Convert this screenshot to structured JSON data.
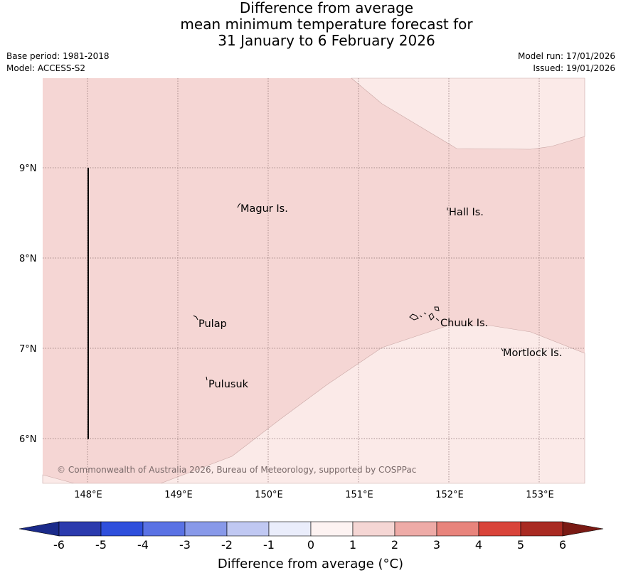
{
  "header": {
    "title_line1": "Difference from average",
    "title_line2": "mean minimum temperature forecast for",
    "title_line3": "31 January to 6 February 2026",
    "base_period": "Base period: 1981-2018",
    "model": "Model: ACCESS-S2",
    "model_run": "Model run: 17/01/2026",
    "issued": "Issued: 19/01/2026"
  },
  "map": {
    "lat_labels": [
      "9°N",
      "8°N",
      "7°N",
      "6°N"
    ],
    "lon_labels": [
      "148°E",
      "149°E",
      "150°E",
      "151°E",
      "152°E",
      "153°E"
    ],
    "places": [
      {
        "name": "Magur Is."
      },
      {
        "name": "Hall Is."
      },
      {
        "name": "Pulap"
      },
      {
        "name": "Chuuk Is."
      },
      {
        "name": "Mortlock Is."
      },
      {
        "name": "Pulusuk"
      }
    ],
    "copyright": "© Commonwealth of Australia 2026, Bureau of Meteorology, supported by COSPPac",
    "colors": {
      "anomaly_0_1": "#fbeae8",
      "anomaly_1_2": "#f5d6d4"
    }
  },
  "colorbar": {
    "ticks": [
      "-6",
      "-5",
      "-4",
      "-3",
      "-2",
      "-1",
      "0",
      "1",
      "2",
      "3",
      "4",
      "5",
      "6"
    ],
    "colors": [
      "#2b3aad",
      "#2f4fdc",
      "#5a72e4",
      "#8899e9",
      "#c0c8f2",
      "#eaedfb",
      "#fdf3f2",
      "#f5d6d4",
      "#eeaba7",
      "#e8847c",
      "#d9443a",
      "#a92a22"
    ],
    "low_extend_color": "#1a2a8a",
    "high_extend_color": "#7a1a14",
    "title": "Difference from average (°C)"
  }
}
